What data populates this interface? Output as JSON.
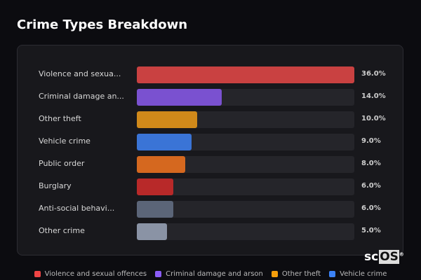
{
  "chart_data": {
    "type": "bar",
    "orientation": "horizontal",
    "title": "Crime Types Breakdown",
    "categories": [
      "Violence and sexua...",
      "Criminal damage an...",
      "Other theft",
      "Vehicle crime",
      "Public order",
      "Burglary",
      "Anti-social behavi...",
      "Other crime"
    ],
    "values": [
      36.0,
      14.0,
      10.0,
      9.0,
      8.0,
      6.0,
      6.0,
      5.0
    ],
    "value_labels": [
      "36.0%",
      "14.0%",
      "10.0%",
      "9.0%",
      "8.0%",
      "6.0%",
      "6.0%",
      "5.0%"
    ],
    "xlim": [
      0,
      36
    ],
    "bar_colors": [
      "#c94141",
      "#7a51d0",
      "#d0891a",
      "#3a74d6",
      "#d5681f",
      "#b82929",
      "#5b6578",
      "#8a93a5"
    ],
    "legend": [
      {
        "label": "Violence and sexual offences",
        "color": "#ef4444"
      },
      {
        "label": "Criminal damage and arson",
        "color": "#8b5cf6"
      },
      {
        "label": "Other theft",
        "color": "#f59e0b"
      },
      {
        "label": "Vehicle crime",
        "color": "#3b82f6"
      }
    ],
    "legend_position": "bottom"
  },
  "logo": {
    "text_a": "sc",
    "text_b": "OS",
    "mark": "®"
  }
}
